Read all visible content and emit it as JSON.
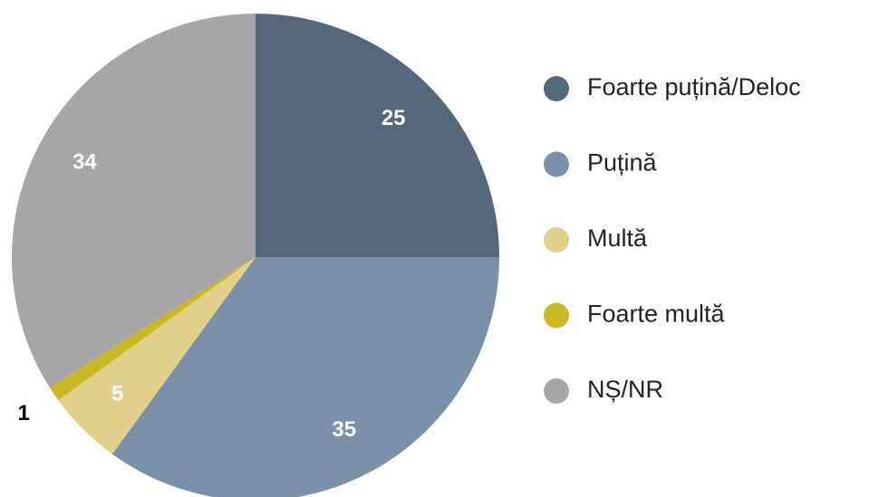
{
  "chart_data": {
    "type": "pie",
    "categories": [
      "Foarte puțină/Deloc",
      "Puțină",
      "Multă",
      "Foarte multă",
      "NȘ/NR"
    ],
    "values": [
      25,
      35,
      5,
      1,
      34
    ],
    "colors": [
      "#566878",
      "#7a91a8",
      "#e0d08a",
      "#c9b826",
      "#a6a6a6"
    ],
    "legend": "right"
  }
}
